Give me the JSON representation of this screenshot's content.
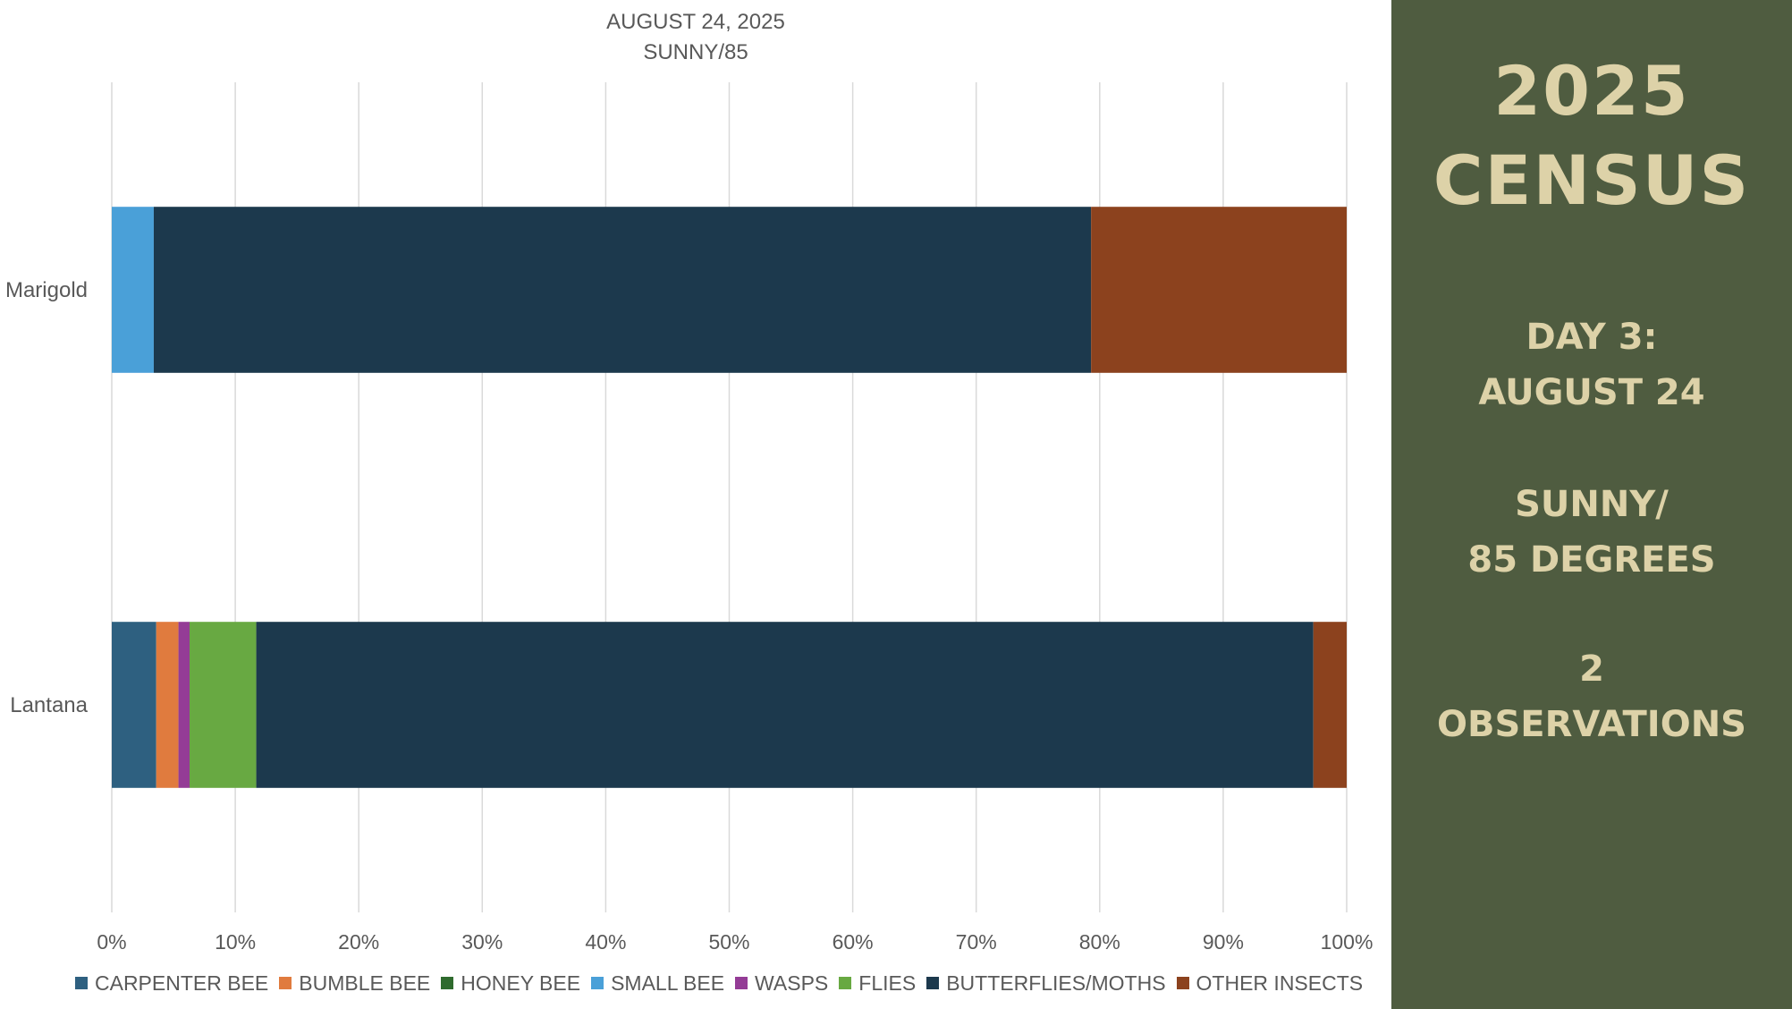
{
  "chart_data": {
    "type": "bar",
    "orientation": "horizontal",
    "stacked": "percent",
    "title": [
      "AUGUST 24, 2025",
      "SUNNY/85"
    ],
    "categories": [
      "Marigold",
      "Lantana"
    ],
    "xlim": [
      0,
      100
    ],
    "x_ticks": [
      "0%",
      "10%",
      "20%",
      "30%",
      "40%",
      "50%",
      "60%",
      "70%",
      "80%",
      "90%",
      "100%"
    ],
    "grid": true,
    "legend_position": "bottom",
    "series": [
      {
        "name": "CARPENTER BEE",
        "color": "#2e6080",
        "values": [
          0,
          3.6
        ]
      },
      {
        "name": "BUMBLE BEE",
        "color": "#e07b3e",
        "values": [
          0,
          1.8
        ]
      },
      {
        "name": "HONEY BEE",
        "color": "#2f6b2e",
        "values": [
          0,
          0
        ]
      },
      {
        "name": "SMALL BEE",
        "color": "#4aa0d8",
        "values": [
          3.4,
          0
        ]
      },
      {
        "name": "WASPS",
        "color": "#943c96",
        "values": [
          0,
          0.9
        ]
      },
      {
        "name": "FLIES",
        "color": "#68a942",
        "values": [
          0,
          5.4
        ]
      },
      {
        "name": "BUTTERFLIES/MOTHS",
        "color": "#1c394d",
        "values": [
          75.9,
          85.6
        ]
      },
      {
        "name": "OTHER INSECTS",
        "color": "#8c421e",
        "values": [
          20.7,
          2.7
        ]
      }
    ]
  },
  "panel": {
    "year": "2025",
    "heading": "CENSUS",
    "day": "DAY 3:",
    "date": "AUGUST 24",
    "weather": "SUNNY/",
    "temperature": "85 DEGREES",
    "observation_count": "2",
    "observations_label": "OBSERVATIONS"
  },
  "colors": {
    "panel_background": "#4f5c40",
    "panel_text": "#ddd2a8"
  }
}
